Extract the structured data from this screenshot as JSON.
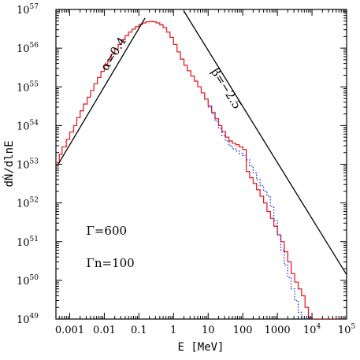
{
  "chart_data": {
    "type": "line",
    "xlabel": "E [MeV]",
    "ylabel": "dṄ/dlnE",
    "xscale": "log",
    "yscale": "log",
    "xlim": [
      0.0004,
      100000
    ],
    "ylim": [
      1e+49,
      1e+57
    ],
    "x_ticks": [
      {
        "value": 0.001,
        "label": "0.001"
      },
      {
        "value": 0.01,
        "label": "0.01"
      },
      {
        "value": 0.1,
        "label": "0.1"
      },
      {
        "value": 1,
        "label": "1"
      },
      {
        "value": 10,
        "label": "10"
      },
      {
        "value": 100,
        "label": "100"
      },
      {
        "value": 1000,
        "label": "1000"
      },
      {
        "value": 10000,
        "label": "10",
        "exp": "4"
      },
      {
        "value": 100000,
        "label": "10",
        "exp": "5"
      }
    ],
    "y_ticks": [
      {
        "value": 1e+49,
        "label": "10",
        "exp": "49"
      },
      {
        "value": 1e+50,
        "label": "10",
        "exp": "50"
      },
      {
        "value": 1e+51,
        "label": "10",
        "exp": "51"
      },
      {
        "value": 1e+52,
        "label": "10",
        "exp": "52"
      },
      {
        "value": 1e+53,
        "label": "10",
        "exp": "53"
      },
      {
        "value": 1e+54,
        "label": "10",
        "exp": "54"
      },
      {
        "value": 1e+55,
        "label": "10",
        "exp": "55"
      },
      {
        "value": 1e+56,
        "label": "10",
        "exp": "56"
      },
      {
        "value": 1e+57,
        "label": "10",
        "exp": "57"
      }
    ],
    "annotations": [
      {
        "text": "α=0.4",
        "x": 0.012,
        "y": 2.5e+55,
        "rotate": -58
      },
      {
        "text": "β=−2.5",
        "x": 12,
        "y": 2.5e+55,
        "rotate": 58
      },
      {
        "text": "Γ=600",
        "x": 0.003,
        "y": 1.5e+51
      },
      {
        "text": "Γn=100",
        "x": 0.003,
        "y": 2.2e+50
      }
    ],
    "grid": false,
    "series": [
      {
        "style": "red-step",
        "color": "#e8202a",
        "x": [
          0.0004,
          0.0005,
          0.0006,
          0.0008,
          0.001,
          0.0013,
          0.0016,
          0.002,
          0.0025,
          0.0032,
          0.004,
          0.005,
          0.0063,
          0.008,
          0.01,
          0.0126,
          0.0158,
          0.02,
          0.025,
          0.0316,
          0.04,
          0.05,
          0.063,
          0.079,
          0.1,
          0.126,
          0.158,
          0.2,
          0.25,
          0.316,
          0.4,
          0.5,
          0.63,
          0.79,
          1,
          1.26,
          1.58,
          2,
          2.5,
          3.16,
          4,
          5,
          6.3,
          7.9,
          10,
          12.6,
          15.8,
          20,
          25,
          31.6,
          40,
          50,
          63,
          79,
          100,
          126,
          158,
          200,
          250,
          316,
          400,
          500,
          630,
          790,
          1000,
          1260,
          1580,
          2000,
          2500,
          3160,
          4000,
          5000,
          6300,
          7900,
          10000,
          12600,
          15800,
          20000,
          25000,
          31600,
          40000,
          50000
        ],
        "y": [
          1.1e+53,
          1.8e+53,
          2.8e+53,
          4.4e+53,
          6.8e+53,
          1e+54,
          1.6e+54,
          2.4e+54,
          3.6e+54,
          5.4e+54,
          8e+54,
          1.2e+55,
          1.75e+55,
          2.5e+55,
          3.5e+55,
          5e+55,
          7e+55,
          9.5e+55,
          1.25e+56,
          1.65e+56,
          2.1e+56,
          2.6e+56,
          3.1e+56,
          3.6e+56,
          4.1e+56,
          4.5e+56,
          4.8e+56,
          4.9e+56,
          4.8e+56,
          4.5e+56,
          4e+56,
          3.4e+56,
          2.6e+56,
          1.9e+56,
          1.25e+56,
          8e+55,
          5.2e+55,
          3.6e+55,
          2.6e+55,
          1.9e+55,
          1.4e+55,
          1e+55,
          7e+54,
          4.8e+54,
          3.2e+54,
          2.2e+54,
          1.5e+54,
          1e+54,
          7e+53,
          5e+53,
          4e+53,
          3.5e+53,
          3.2e+53,
          2.8e+53,
          2.4e+53,
          6.5e+52,
          4.5e+52,
          3.2e+52,
          2.2e+52,
          1.5e+52,
          1e+52,
          6e+51,
          4e+51,
          2.5e+51,
          1.5e+51,
          1e+51,
          5.5e+50,
          3e+50,
          1.5e+50,
          9e+49,
          6e+49,
          4e+49,
          2e+49,
          1.1e+49,
          1e+49,
          1e+49,
          1e+49,
          1e+49,
          1e+49,
          1e+49,
          1e+49,
          1e+49
        ]
      },
      {
        "style": "blue-dotted-step",
        "color": "#2a2ae8",
        "x": [
          10,
          12.6,
          15.8,
          20,
          25,
          31.6,
          40,
          50,
          63,
          79,
          100,
          126,
          158,
          200,
          250,
          316,
          400,
          500,
          630,
          790,
          1000,
          1260,
          1580,
          2000,
          2500,
          3160,
          4000,
          5000,
          6300,
          7900
        ],
        "y": [
          3e+54,
          2e+54,
          1.3e+54,
          8.5e+53,
          5.5e+53,
          4e+53,
          3e+53,
          2.5e+53,
          2.2e+53,
          1.9e+53,
          1.7e+53,
          1.3e+53,
          9e+52,
          6e+52,
          4e+52,
          2.8e+52,
          2e+52,
          1.5e+52,
          8e+51,
          3.5e+51,
          1.5e+51,
          6e+50,
          2.5e+50,
          1.2e+50,
          6e+49,
          3e+49,
          1.5e+49,
          1e+49,
          1e+49,
          1e+49
        ]
      },
      {
        "style": "black-line",
        "color": "#000000",
        "x": [
          0.00045,
          0.15
        ],
        "y": [
          9.5e+52,
          6e+56
        ]
      },
      {
        "style": "black-line",
        "color": "#000000",
        "x": [
          2.0,
          100000
        ],
        "y": [
          9e+56,
          1.4e+50
        ]
      }
    ]
  }
}
